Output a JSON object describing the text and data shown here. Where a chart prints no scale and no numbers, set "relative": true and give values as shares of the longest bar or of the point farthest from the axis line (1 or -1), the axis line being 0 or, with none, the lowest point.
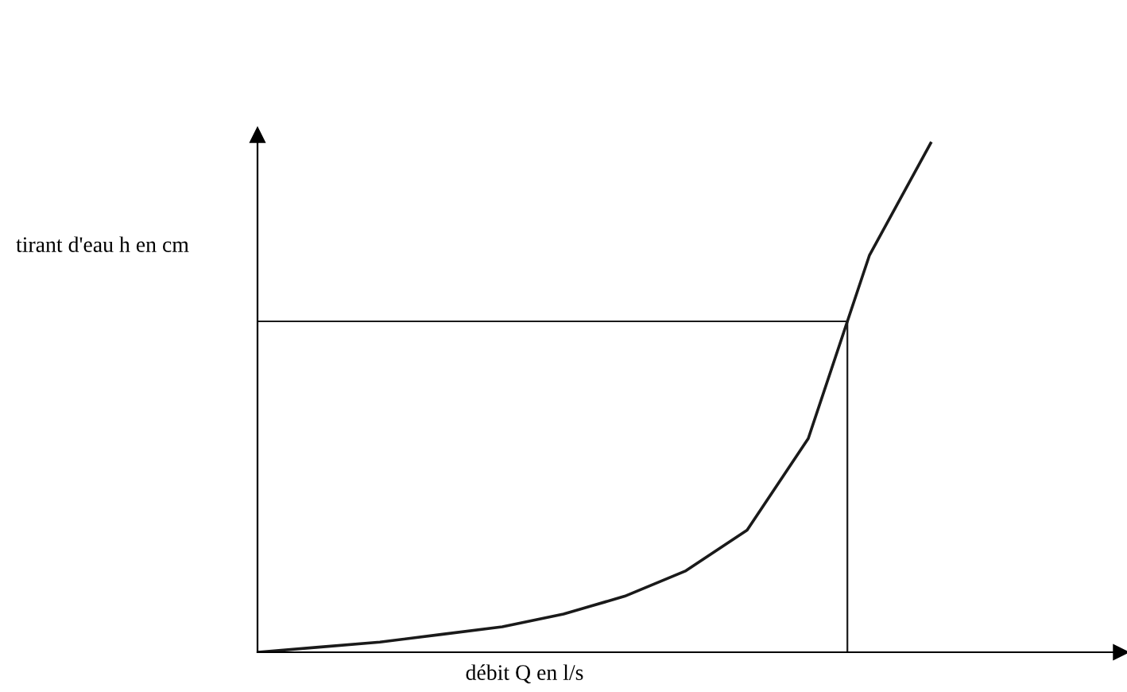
{
  "chart_data": {
    "type": "line",
    "relative": true,
    "xlabel": "débit Q en l/s",
    "ylabel": "tirant d'eau h en cm",
    "categories": [
      null,
      null,
      null,
      null,
      null,
      null,
      null,
      null,
      null,
      null,
      null,
      null
    ],
    "series": [
      {
        "color": "#1a1a1a",
        "values": [
          0,
          0.01,
          0.02,
          0.035,
          0.05,
          0.075,
          0.11,
          0.16,
          0.24,
          0.42,
          0.78,
          1
        ]
      }
    ],
    "ref_lines": [
      {
        "axis": "y",
        "value": 0.65,
        "color": "#1a1a1a"
      }
    ],
    "marker": "none",
    "line_style": "solid"
  }
}
